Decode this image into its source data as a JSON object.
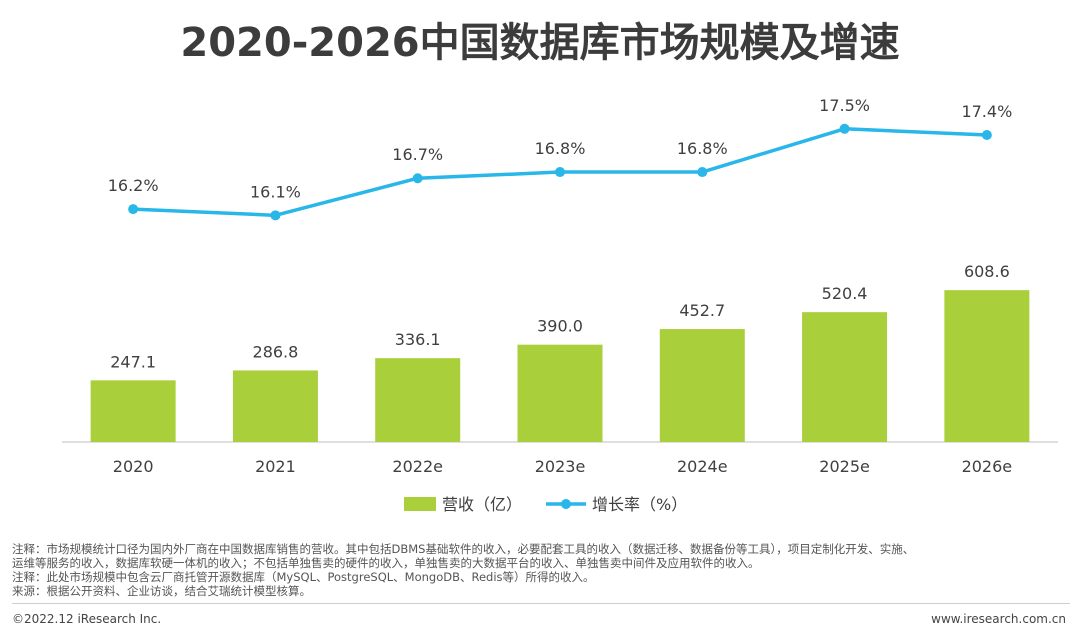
{
  "title": "2020-2026中国数据库市场规模及增速",
  "chart_data": {
    "type": "bar",
    "categories": [
      "2020",
      "2021",
      "2022e",
      "2023e",
      "2024e",
      "2025e",
      "2026e"
    ],
    "series": [
      {
        "name": "营收（亿）",
        "type": "bar",
        "values": [
          247.1,
          286.8,
          336.1,
          390.0,
          452.7,
          520.4,
          608.6
        ],
        "labels": [
          "247.1",
          "286.8",
          "336.1",
          "390.0",
          "452.7",
          "520.4",
          "608.6"
        ],
        "color": "#a9d03b"
      },
      {
        "name": "增长率（%）",
        "type": "line",
        "values": [
          16.2,
          16.1,
          16.7,
          16.8,
          16.8,
          17.5,
          17.4
        ],
        "labels": [
          "16.2%",
          "16.1%",
          "16.7%",
          "16.8%",
          "16.8%",
          "17.5%",
          "17.4%"
        ],
        "color": "#29b6e8"
      }
    ],
    "legend_position": "bottom",
    "grid": false
  },
  "notes": [
    "注释：市场规模统计口径为国内外厂商在中国数据库销售的营收。其中包括DBMS基础软件的收入，必要配套工具的收入（数据迁移、数据备份等工具），项目定制化开发、实施、",
    "运维等服务的收入，数据库软硬一体机的收入；不包括单独售卖的硬件的收入，单独售卖的大数据平台的收入、单独售卖中间件及应用软件的收入。",
    "注释：此处市场规模中包含云厂商托管开源数据库（MySQL、PostgreSQL、MongoDB、Redis等）所得的收入。",
    "来源：根据公开资料、企业访谈，结合艾瑞统计模型核算。"
  ],
  "copyright": "©2022.12 iResearch Inc.",
  "website": "www.iresearch.com.cn"
}
